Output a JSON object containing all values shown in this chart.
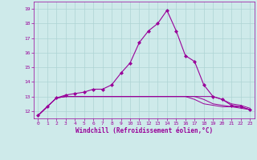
{
  "title": "Windchill (Refroidissement éolien,°C)",
  "background_color": "#ceeaea",
  "grid_color": "#aed4d4",
  "line_color": "#990099",
  "xlim": [
    -0.5,
    23.5
  ],
  "ylim": [
    11.5,
    19.5
  ],
  "yticks": [
    12,
    13,
    14,
    15,
    16,
    17,
    18,
    19
  ],
  "xticks": [
    0,
    1,
    2,
    3,
    4,
    5,
    6,
    7,
    8,
    9,
    10,
    11,
    12,
    13,
    14,
    15,
    16,
    17,
    18,
    19,
    20,
    21,
    22,
    23
  ],
  "series_main": [
    11.7,
    12.3,
    12.9,
    13.1,
    13.2,
    13.3,
    13.5,
    13.5,
    13.8,
    14.6,
    15.3,
    16.7,
    17.5,
    18.0,
    18.9,
    17.5,
    15.8,
    15.4,
    13.8,
    13.0,
    12.8,
    12.4,
    12.3,
    12.1
  ],
  "series_flat": [
    [
      11.7,
      12.3,
      12.9,
      13.0,
      13.0,
      13.0,
      13.0,
      13.0,
      13.0,
      13.0,
      13.0,
      13.0,
      13.0,
      13.0,
      13.0,
      13.0,
      13.0,
      13.0,
      13.0,
      13.0,
      12.8,
      12.5,
      12.4,
      12.2
    ],
    [
      11.7,
      12.3,
      12.9,
      13.0,
      13.0,
      13.0,
      13.0,
      13.0,
      13.0,
      13.0,
      13.0,
      13.0,
      13.0,
      13.0,
      13.0,
      13.0,
      13.0,
      13.0,
      12.8,
      12.5,
      12.4,
      12.3,
      12.3,
      12.1
    ],
    [
      11.7,
      12.3,
      12.9,
      13.0,
      13.0,
      13.0,
      13.0,
      13.0,
      13.0,
      13.0,
      13.0,
      13.0,
      13.0,
      13.0,
      13.0,
      13.0,
      13.0,
      12.8,
      12.5,
      12.4,
      12.3,
      12.3,
      12.2,
      12.1
    ]
  ],
  "marker": "D",
  "markersize": 2.0,
  "linewidth_main": 0.8,
  "linewidth_flat": 0.7
}
